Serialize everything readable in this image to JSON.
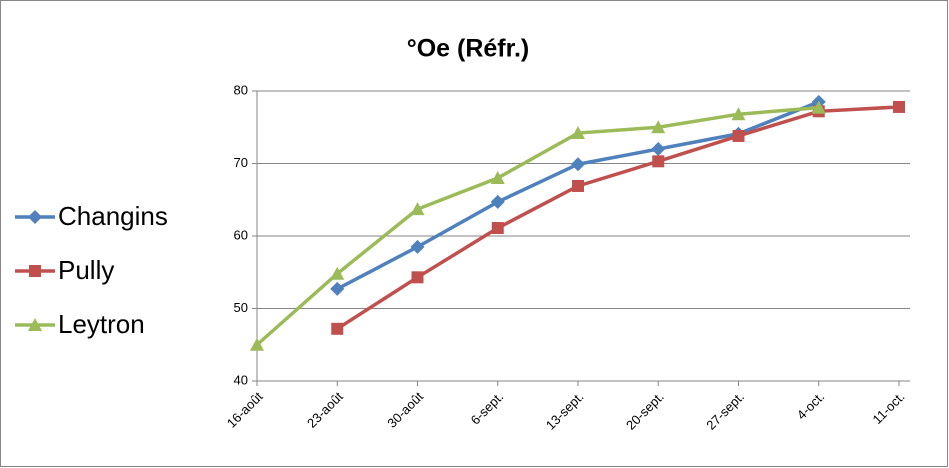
{
  "chart_data": {
    "type": "line",
    "title": "°Oe (Réfr.)",
    "categories": [
      "16-août",
      "23-août",
      "30-août",
      "6-sept.",
      "13-sept.",
      "20-sept.",
      "27-sept.",
      "4-oct.",
      "11-oct."
    ],
    "series": [
      {
        "name": "Changins",
        "color": "#4f81bd",
        "marker": "diamond",
        "values": [
          null,
          52.7,
          58.5,
          64.7,
          69.9,
          72,
          74.1,
          78.5,
          null
        ]
      },
      {
        "name": "Pully",
        "color": "#c0504d",
        "marker": "square",
        "values": [
          null,
          47.2,
          54.3,
          61.1,
          66.9,
          70.3,
          73.8,
          77.2,
          77.8
        ]
      },
      {
        "name": "Leytron",
        "color": "#9bbb59",
        "marker": "triangle",
        "values": [
          45,
          54.8,
          63.7,
          68,
          74.2,
          75,
          76.8,
          77.7,
          null
        ]
      }
    ],
    "ylim": [
      40,
      80
    ],
    "yticks": [
      40,
      50,
      60,
      70,
      80
    ],
    "grid": true,
    "legend": "left"
  }
}
